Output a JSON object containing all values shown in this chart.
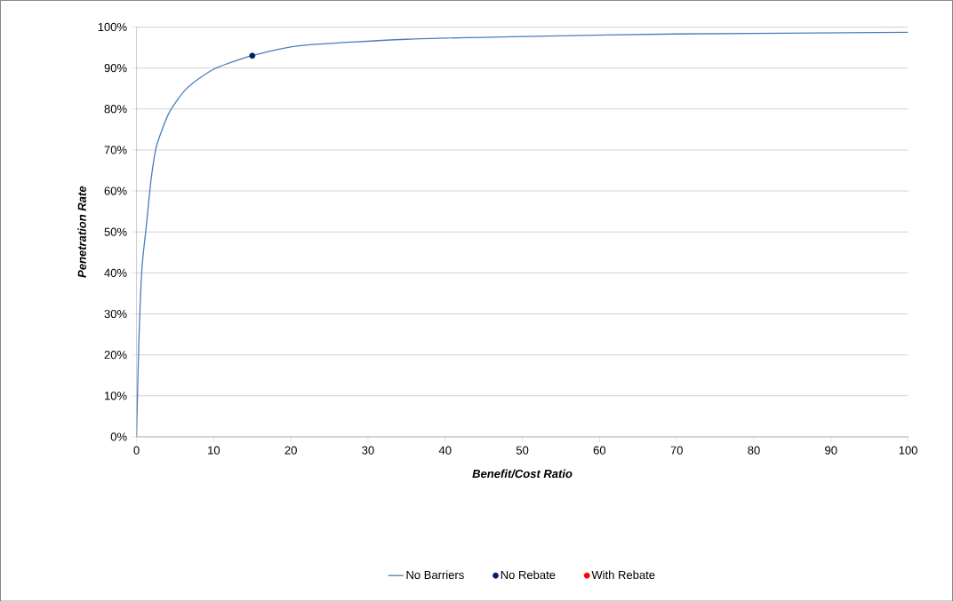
{
  "chart_data": {
    "type": "line",
    "xlabel": "Benefit/Cost Ratio",
    "ylabel": "Penetration Rate",
    "xlim": [
      0,
      100
    ],
    "xticks": [
      0,
      10,
      20,
      30,
      40,
      50,
      60,
      70,
      80,
      90,
      100
    ],
    "ylim": [
      0,
      100
    ],
    "yticks": [
      {
        "value": 0,
        "label": "0%"
      },
      {
        "value": 10,
        "label": "10%"
      },
      {
        "value": 20,
        "label": "20%"
      },
      {
        "value": 30,
        "label": "30%"
      },
      {
        "value": 40,
        "label": "40%"
      },
      {
        "value": 50,
        "label": "50%"
      },
      {
        "value": 60,
        "label": "60%"
      },
      {
        "value": 70,
        "label": "70%"
      },
      {
        "value": 80,
        "label": "80%"
      },
      {
        "value": 90,
        "label": "90%"
      },
      {
        "value": 100,
        "label": "100%"
      }
    ],
    "grid": "y",
    "legend": "bottom",
    "series": [
      {
        "name": "No Barriers",
        "color": "#4a7ebb",
        "marker": "none",
        "x": [
          0,
          0.3,
          0.7,
          1.3,
          1.9,
          2.6,
          4.2,
          6.5,
          10,
          15,
          21.5,
          35,
          50,
          70,
          100
        ],
        "values": [
          0,
          23,
          41,
          52,
          63,
          71,
          79,
          85,
          89.7,
          93,
          95.5,
          97,
          97.7,
          98.3,
          98.7
        ]
      },
      {
        "name": "No Rebate",
        "type": "scatter",
        "color": "#002060",
        "marker": "circle",
        "x": [
          15
        ],
        "values": [
          93
        ]
      },
      {
        "name": "With Rebate",
        "type": "scatter",
        "color": "#ff0000",
        "marker": "circle"
      }
    ]
  }
}
